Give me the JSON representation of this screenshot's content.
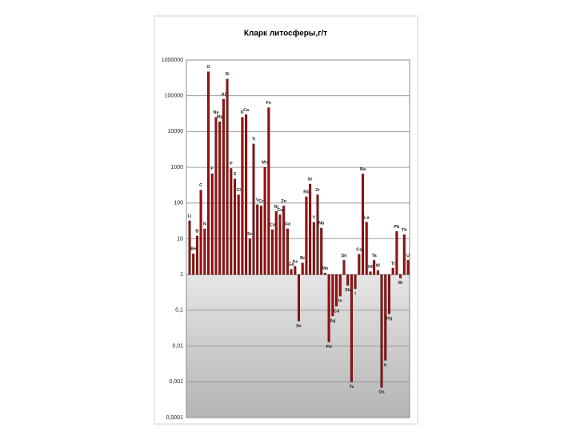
{
  "chart_data": {
    "type": "bar",
    "title": "Кларк литосферы,г/т",
    "log_scale": true,
    "grid": true,
    "color": "#9a1010",
    "categories": [
      "Li",
      "Be",
      "B",
      "C",
      "N",
      "O",
      "F",
      "Na",
      "Mg",
      "Al",
      "Si",
      "P",
      "S",
      "Cl",
      "K",
      "Ca",
      "Sc",
      "Ti",
      "V",
      "Cr",
      "Mn",
      "Fe",
      "Co",
      "Ni",
      "Cu",
      "Zn",
      "Ga",
      "Ge",
      "As",
      "Se",
      "Br",
      "Rb",
      "Sr",
      "Y",
      "Zr",
      "Nb",
      "Mo",
      "Pd",
      "Ag",
      "Cd",
      "In",
      "Sn",
      "Sb",
      "Te",
      "I",
      "Cs",
      "Ba",
      "La",
      "Hf",
      "Ta",
      "W",
      "Os",
      "Ir",
      "Hg",
      "Tl",
      "Pb",
      "Bi",
      "Th",
      "U"
    ],
    "values": [
      32,
      3.8,
      12,
      230,
      19,
      470000,
      660,
      25000,
      18700,
      80500,
      295000,
      930,
      470,
      170,
      25000,
      29600,
      10,
      4500,
      90,
      83,
      1000,
      46500,
      18,
      58,
      47,
      83,
      19,
      1.4,
      1.7,
      0.05,
      2.1,
      150,
      340,
      29,
      170,
      20,
      1.1,
      0.013,
      0.07,
      0.13,
      0.25,
      2.5,
      0.5,
      0.001,
      0.4,
      3.7,
      650,
      29,
      1.2,
      2.5,
      1.3,
      0.0007,
      0.004,
      0.08,
      1.5,
      16,
      0.8,
      13,
      2.5
    ],
    "ylim": [
      0.0001,
      1000000
    ],
    "yticks": [
      {
        "value": 0.0001,
        "label": "0,0001"
      },
      {
        "value": 0.001,
        "label": "0,001"
      },
      {
        "value": 0.01,
        "label": "0,01"
      },
      {
        "value": 0.1,
        "label": "0,1"
      },
      1,
      10,
      100,
      1000,
      10000,
      100000,
      1000000
    ]
  }
}
